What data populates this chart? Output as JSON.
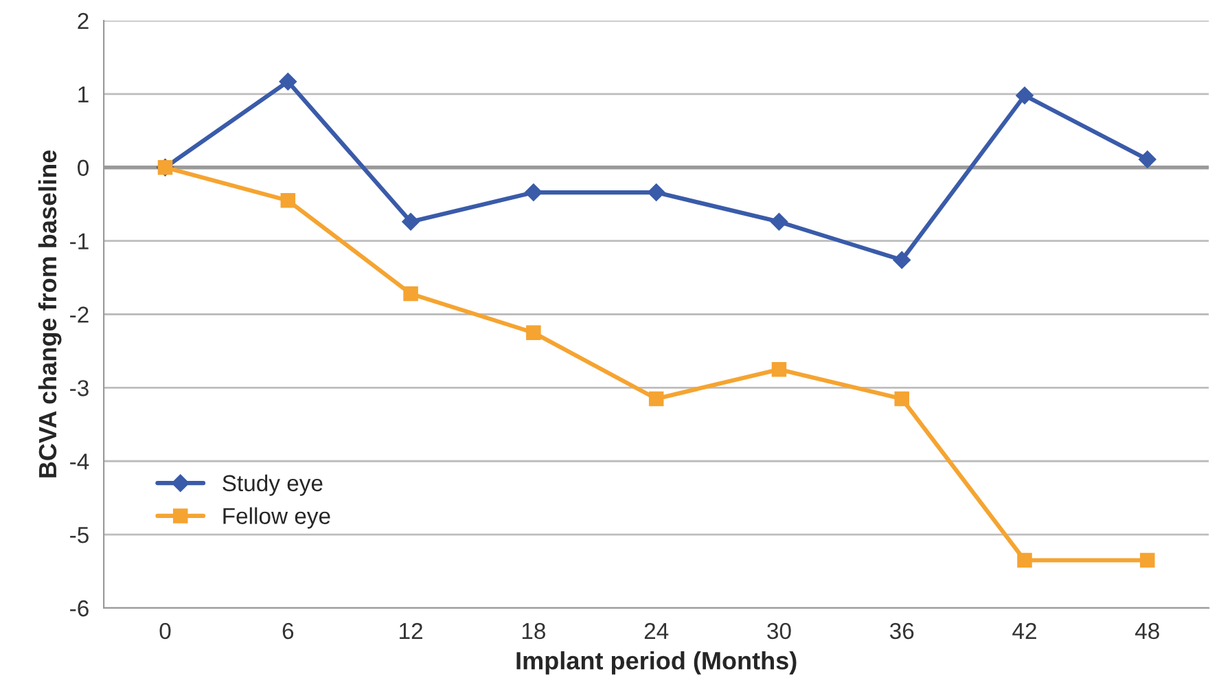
{
  "chart_data": {
    "type": "line",
    "xlabel": "Implant period (Months)",
    "ylabel": "BCVA change from baseline",
    "categories": [
      "0",
      "6",
      "12",
      "18",
      "24",
      "30",
      "36",
      "42",
      "48"
    ],
    "series": [
      {
        "name": "Study eye",
        "color": "#3a5ba9",
        "marker": "diamond",
        "values": [
          0,
          1.17,
          -0.74,
          -0.34,
          -0.34,
          -0.74,
          -1.26,
          0.98,
          0.11
        ]
      },
      {
        "name": "Fellow eye",
        "color": "#f5a431",
        "marker": "square",
        "values": [
          0,
          -0.45,
          -1.72,
          -2.25,
          -3.15,
          -2.75,
          -3.15,
          -5.35,
          -5.35
        ]
      }
    ],
    "ylim": [
      -6,
      2
    ],
    "yticks": [
      -6,
      -5,
      -4,
      -3,
      -2,
      -1,
      0,
      1,
      2
    ],
    "ref_lines": [
      {
        "axis": "y",
        "value": 0,
        "color": "#9a9a9a"
      }
    ],
    "grid": "y",
    "legend": "bottom left"
  }
}
